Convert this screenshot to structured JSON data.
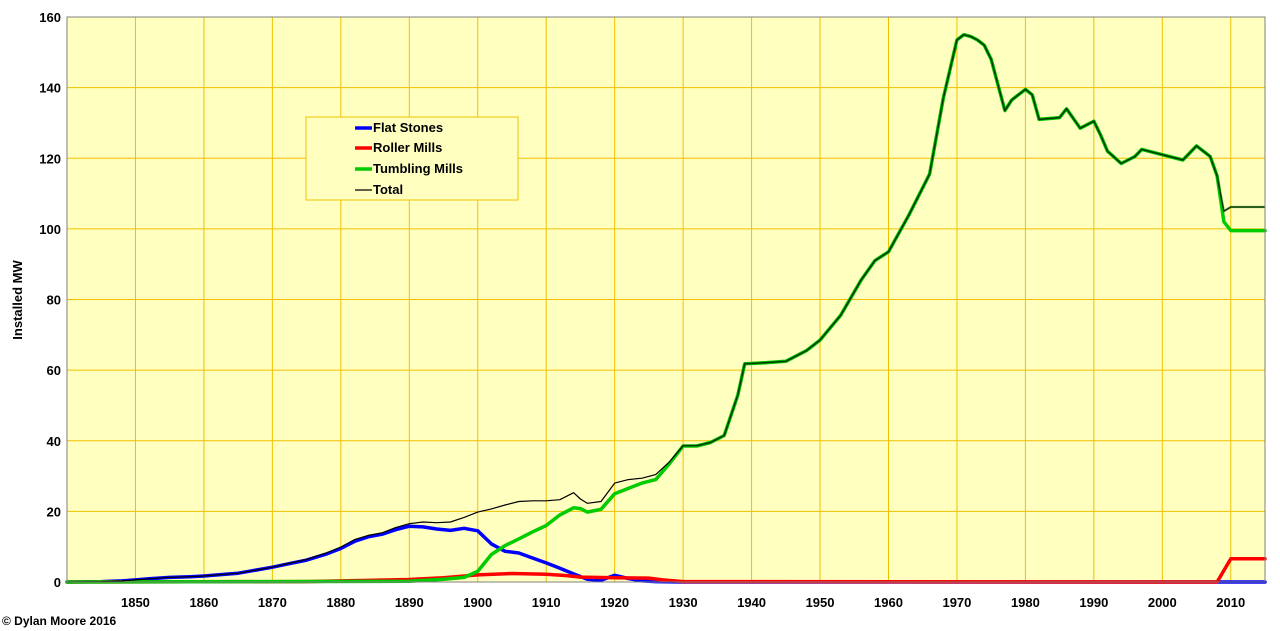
{
  "chart_data": {
    "type": "line",
    "title": "",
    "xlabel": "",
    "ylabel": "Installed MW",
    "xlim": [
      1840,
      2015
    ],
    "ylim": [
      0,
      160
    ],
    "xticks": [
      1850,
      1860,
      1870,
      1880,
      1890,
      1900,
      1910,
      1920,
      1930,
      1940,
      1950,
      1960,
      1970,
      1980,
      1990,
      2000,
      2010
    ],
    "yticks": [
      0,
      20,
      40,
      60,
      80,
      100,
      120,
      140,
      160
    ],
    "grid": true,
    "background": "#ffffc0",
    "grid_color": "#f0c000",
    "legend_position": "upper-left",
    "credit": "© Dylan Moore 2016",
    "series": [
      {
        "name": "Flat Stones",
        "color": "#0000ff",
        "x": [
          1840,
          1845,
          1848,
          1850,
          1852,
          1855,
          1858,
          1860,
          1862,
          1865,
          1868,
          1870,
          1872,
          1875,
          1878,
          1880,
          1882,
          1884,
          1886,
          1888,
          1890,
          1892,
          1894,
          1896,
          1898,
          1900,
          1902,
          1904,
          1906,
          1908,
          1910,
          1912,
          1914,
          1916,
          1918,
          1920,
          1922,
          1924,
          1926,
          1930,
          2015
        ],
        "y": [
          0,
          0.1,
          0.3,
          0.6,
          0.9,
          1.3,
          1.5,
          1.7,
          2,
          2.5,
          3.5,
          4.2,
          5,
          6.2,
          8,
          9.5,
          11.5,
          12.8,
          13.5,
          14.8,
          15.8,
          15.6,
          15,
          14.6,
          15.2,
          14.5,
          10.8,
          8.7,
          8.2,
          6.8,
          5.4,
          3.9,
          2.3,
          0.8,
          0.5,
          1.9,
          1,
          0.3,
          0.1,
          0,
          0
        ]
      },
      {
        "name": "Roller Mills",
        "color": "#ff0000",
        "x": [
          1840,
          1875,
          1880,
          1885,
          1890,
          1895,
          1900,
          1905,
          1910,
          1913,
          1915,
          1920,
          1925,
          1927,
          1930,
          2008,
          2010,
          2015
        ],
        "y": [
          0,
          0.1,
          0.3,
          0.5,
          0.7,
          1.2,
          2,
          2.4,
          2.2,
          1.8,
          1.4,
          1.2,
          1.1,
          0.6,
          0.1,
          0,
          6.6,
          6.6
        ]
      },
      {
        "name": "Tumbling Mills",
        "color": "#00cc00",
        "x": [
          1840,
          1890,
          1895,
          1898,
          1900,
          1902,
          1904,
          1906,
          1908,
          1910,
          1912,
          1914,
          1915,
          1916,
          1918,
          1920,
          1922,
          1924,
          1926,
          1928,
          1930,
          1932,
          1934,
          1936,
          1938,
          1939,
          1942,
          1945,
          1948,
          1950,
          1953,
          1956,
          1958,
          1960,
          1963,
          1966,
          1968,
          1970,
          1971,
          1972,
          1973,
          1974,
          1975,
          1977,
          1978,
          1980,
          1981,
          1982,
          1985,
          1986,
          1988,
          1990,
          1991,
          1992,
          1994,
          1996,
          1997,
          1998,
          2000,
          2003,
          2005,
          2007,
          2008,
          2009,
          2010,
          2015
        ],
        "y": [
          0,
          0.2,
          0.8,
          1.3,
          3,
          7.8,
          10.3,
          12.2,
          14.2,
          16,
          19,
          21,
          20.8,
          19.8,
          20.6,
          25,
          26.5,
          28,
          29,
          33.5,
          38.5,
          38.5,
          39.5,
          41.5,
          53,
          61.8,
          62.1,
          62.5,
          65.5,
          68.5,
          75.5,
          85.5,
          91,
          93.5,
          104,
          115.5,
          137,
          153.5,
          155,
          154.5,
          153.5,
          152,
          148,
          133.5,
          136.5,
          139.5,
          138,
          131,
          131.5,
          134,
          128.5,
          130.5,
          126.5,
          122,
          118.5,
          120.5,
          122.5,
          122,
          121,
          119.5,
          123.5,
          120.5,
          115,
          102,
          99.5,
          99.5
        ]
      },
      {
        "name": "Total",
        "color": "#000000",
        "x": [
          1840,
          1845,
          1848,
          1850,
          1852,
          1855,
          1858,
          1860,
          1862,
          1865,
          1868,
          1870,
          1872,
          1875,
          1878,
          1880,
          1882,
          1884,
          1886,
          1888,
          1890,
          1892,
          1894,
          1896,
          1898,
          1900,
          1902,
          1904,
          1906,
          1908,
          1910,
          1912,
          1914,
          1915,
          1916,
          1918,
          1920,
          1922,
          1924,
          1926,
          1928,
          1930,
          1932,
          1934,
          1936,
          1938,
          1939,
          1942,
          1945,
          1948,
          1950,
          1953,
          1956,
          1958,
          1960,
          1963,
          1966,
          1968,
          1970,
          1971,
          1972,
          1973,
          1974,
          1975,
          1977,
          1978,
          1980,
          1981,
          1982,
          1985,
          1986,
          1988,
          1990,
          1991,
          1992,
          1994,
          1996,
          1997,
          1998,
          2000,
          2003,
          2005,
          2007,
          2008,
          2009,
          2010,
          2015
        ],
        "y": [
          0,
          0.1,
          0.3,
          0.6,
          0.9,
          1.3,
          1.5,
          1.7,
          2,
          2.5,
          3.5,
          4.2,
          5.1,
          6.4,
          8.3,
          9.9,
          12,
          13.2,
          13.9,
          15.4,
          16.5,
          17,
          16.8,
          17,
          18.3,
          19.8,
          20.7,
          21.8,
          22.8,
          23,
          23,
          23.3,
          25.3,
          23.5,
          22.3,
          22.8,
          28,
          29,
          29.4,
          30.4,
          34,
          38.6,
          38.6,
          39.5,
          41.5,
          53,
          61.8,
          62.1,
          62.5,
          65.5,
          68.5,
          75.5,
          85.5,
          91,
          93.5,
          104,
          115.5,
          137,
          153.5,
          155,
          154.5,
          153.5,
          152,
          148,
          133.5,
          136.5,
          139.5,
          138,
          131,
          131.5,
          134,
          128.5,
          130.5,
          126.5,
          122,
          118.5,
          120.5,
          122.5,
          122,
          121,
          119.5,
          123.5,
          120.5,
          115,
          105,
          106.2,
          106.2
        ]
      }
    ]
  }
}
